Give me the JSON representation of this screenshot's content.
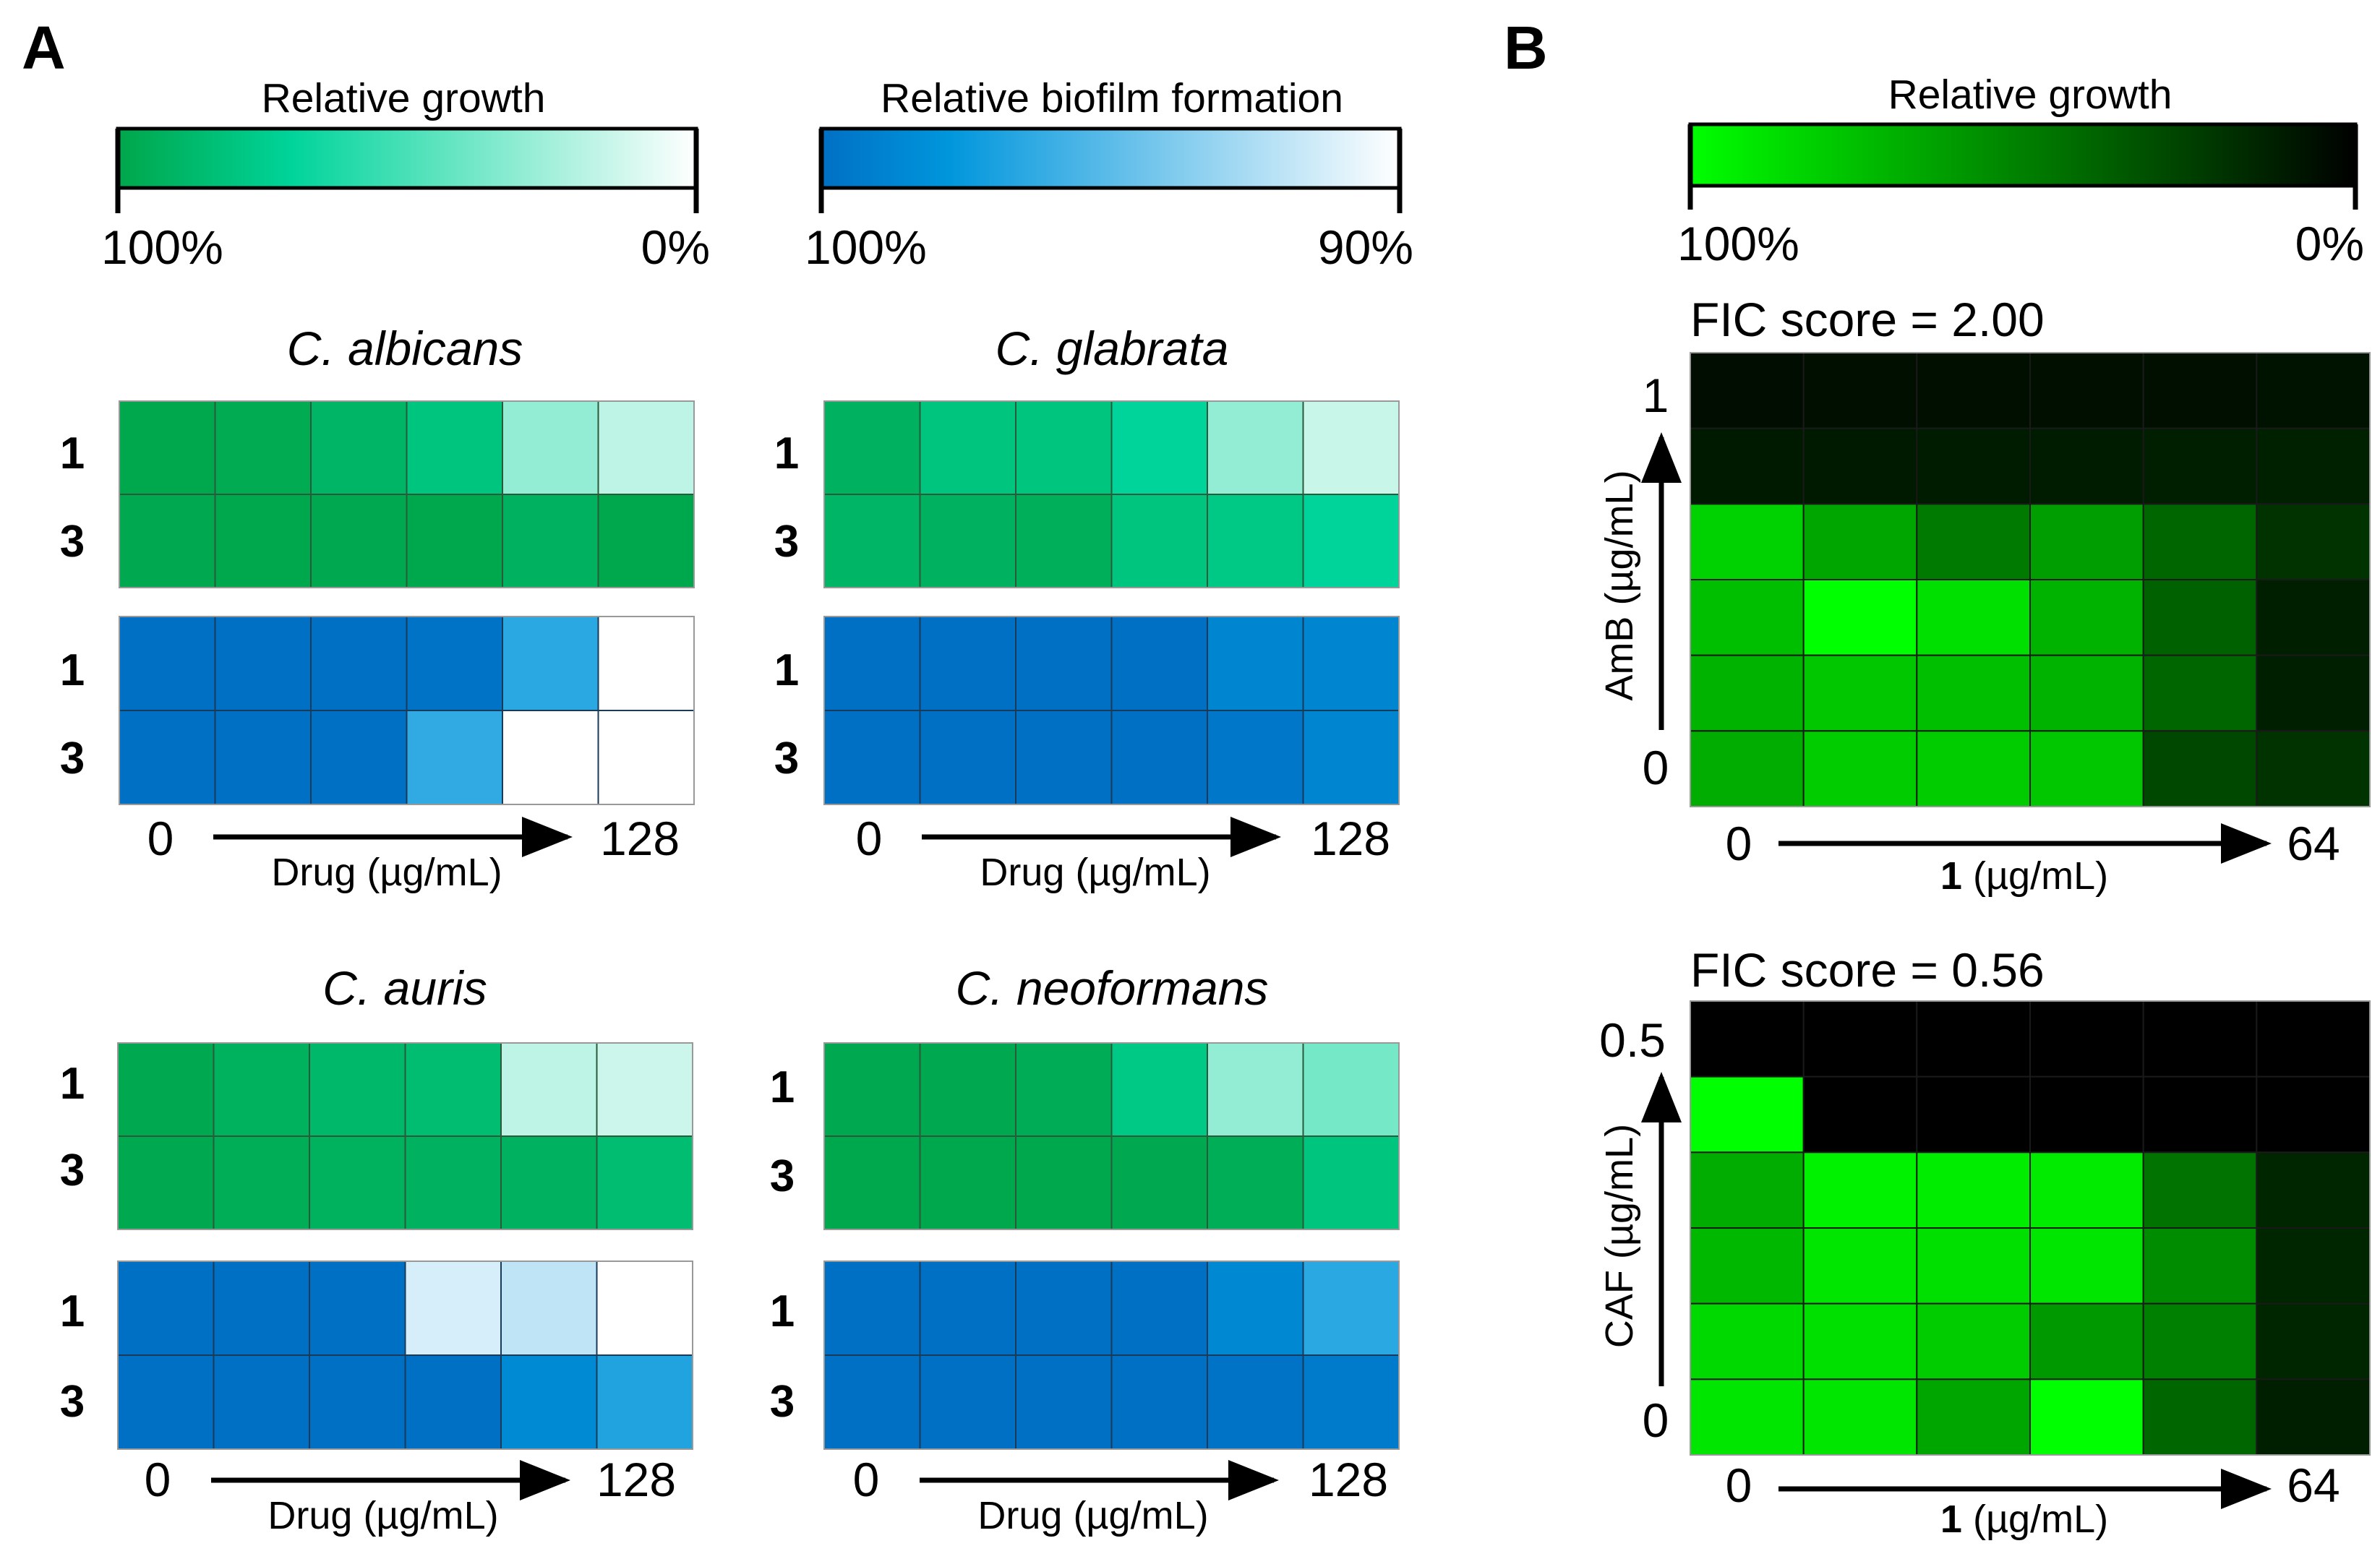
{
  "panels": {
    "a": "A",
    "b": "B"
  },
  "legends": {
    "a_growth": {
      "title": "Relative growth",
      "left": "100%",
      "right": "0%"
    },
    "a_biofilm": {
      "title": "Relative biofilm formation",
      "left": "100%",
      "right": "90%"
    },
    "b_growth": {
      "title": "Relative growth",
      "left": "100%",
      "right": "0%"
    }
  },
  "colors": {
    "growth_100": "#00a64a",
    "growth_mid": "#00d49a",
    "growth_0": "#ffffff",
    "biofilm_100": "#0070c4",
    "biofilm_mid": "#0096dc",
    "biofilm_90": "#ffffff",
    "b_growth_100": "#00ff00",
    "b_growth_0": "#000000",
    "grid_line": "#1a1a1a"
  },
  "chart_data": [
    {
      "type": "heatmap",
      "panel": "A",
      "title": "C. albicans",
      "rows": [
        "1",
        "3"
      ],
      "xlabel": "Drug (µg/mL)",
      "x_start": "0",
      "x_end": "128",
      "growth_pct": [
        [
          99,
          97,
          90,
          80,
          30,
          18
        ],
        [
          98,
          99,
          98,
          99,
          92,
          99
        ]
      ],
      "biofilm_pct": [
        [
          100,
          100,
          100,
          99.8,
          96.5,
          90
        ],
        [
          100,
          100,
          100,
          96.3,
          90,
          90
        ]
      ]
    },
    {
      "type": "heatmap",
      "panel": "A",
      "title": "C. glabrata",
      "rows": [
        "1",
        "3"
      ],
      "xlabel": "Drug (µg/mL)",
      "x_start": "0",
      "x_end": "128",
      "growth_pct": [
        [
          92,
          80,
          80,
          70,
          30,
          15
        ],
        [
          90,
          92,
          94,
          80,
          78,
          70
        ]
      ],
      "biofilm_pct": [
        [
          100,
          100,
          100,
          100,
          98.8,
          98.8
        ],
        [
          100,
          100,
          100,
          100,
          99.6,
          98.8
        ]
      ]
    },
    {
      "type": "heatmap",
      "panel": "A",
      "title": "C. auris",
      "rows": [
        "1",
        "3"
      ],
      "xlabel": "Drug (µg/mL)",
      "x_start": "0",
      "x_end": "128",
      "growth_pct": [
        [
          98,
          93,
          88,
          85,
          18,
          14
        ],
        [
          98,
          95,
          93,
          92,
          92,
          85
        ]
      ],
      "biofilm_pct": [
        [
          100,
          100,
          100,
          91.3,
          92,
          90
        ],
        [
          100,
          100,
          100,
          100,
          98.5,
          96.8
        ]
      ]
    },
    {
      "type": "heatmap",
      "panel": "A",
      "title": "C. neoformans",
      "rows": [
        "1",
        "3"
      ],
      "xlabel": "Drug (µg/mL)",
      "x_start": "0",
      "x_end": "128",
      "growth_pct": [
        [
          98,
          98,
          96,
          78,
          30,
          38
        ],
        [
          99,
          99,
          99,
          98,
          95,
          80
        ]
      ],
      "biofilm_pct": [
        [
          100,
          100,
          100,
          100,
          98.6,
          96.5
        ],
        [
          100,
          100,
          100,
          100,
          99.8,
          99.4
        ]
      ]
    },
    {
      "type": "heatmap",
      "panel": "B",
      "title": "FIC score = 2.00",
      "ylabel": "AmB (µg/mL)",
      "y_top": "1",
      "y_bottom": "0",
      "xlabel_bold": "1",
      "xlabel_rest": " (µg/mL)",
      "x_start": "0",
      "x_end": "64",
      "growth_pct": [
        [
          5,
          6,
          6,
          6,
          6,
          7
        ],
        [
          10,
          10,
          11,
          11,
          12,
          13
        ],
        [
          82,
          65,
          48,
          62,
          40,
          20
        ],
        [
          75,
          100,
          88,
          70,
          38,
          12
        ],
        [
          70,
          78,
          75,
          70,
          40,
          12
        ],
        [
          68,
          80,
          80,
          78,
          28,
          20
        ]
      ]
    },
    {
      "type": "heatmap",
      "panel": "B",
      "title": "FIC score = 0.56",
      "ylabel": "CAF (µg/mL)",
      "y_top": "0.5",
      "y_bottom": "0",
      "xlabel_bold": "1",
      "xlabel_rest": " (µg/mL)",
      "x_start": "0",
      "x_end": "64",
      "growth_pct": [
        [
          0,
          0,
          0,
          0,
          0,
          0
        ],
        [
          100,
          0,
          0,
          0,
          0,
          0
        ],
        [
          68,
          95,
          93,
          92,
          45,
          15
        ],
        [
          72,
          90,
          88,
          90,
          55,
          15
        ],
        [
          85,
          88,
          80,
          60,
          50,
          15
        ],
        [
          90,
          90,
          65,
          100,
          40,
          12
        ]
      ]
    }
  ]
}
